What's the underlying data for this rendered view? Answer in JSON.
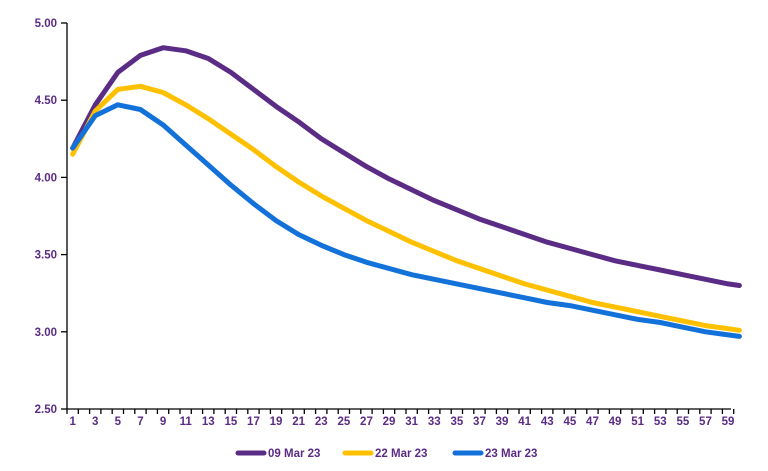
{
  "chart_data": {
    "type": "line",
    "title": "",
    "xlabel": "",
    "ylabel": "",
    "grid": false,
    "legend_position": "bottom",
    "ylim": [
      2.5,
      5.0
    ],
    "yticks": [
      {
        "value": 2.5,
        "label": "2.50"
      },
      {
        "value": 3.0,
        "label": "3.00"
      },
      {
        "value": 3.5,
        "label": "3.50"
      },
      {
        "value": 4.0,
        "label": "4.00"
      },
      {
        "value": 4.5,
        "label": "4.50"
      },
      {
        "value": 5.0,
        "label": "5.00"
      }
    ],
    "xtick_labels": [
      1,
      3,
      5,
      7,
      9,
      11,
      13,
      15,
      17,
      19,
      21,
      23,
      25,
      27,
      29,
      31,
      33,
      35,
      37,
      39,
      41,
      43,
      45,
      47,
      49,
      51,
      53,
      55,
      57,
      59
    ],
    "x_categories_count": 60,
    "x": [
      1,
      3,
      5,
      7,
      9,
      11,
      13,
      15,
      17,
      19,
      21,
      23,
      25,
      27,
      29,
      31,
      33,
      35,
      37,
      39,
      41,
      43,
      45,
      47,
      49,
      51,
      53,
      55,
      57,
      59,
      60
    ],
    "series": [
      {
        "name": "09 Mar 23",
        "color": "#5B2C85",
        "values": [
          4.19,
          4.47,
          4.68,
          4.79,
          4.84,
          4.82,
          4.77,
          4.68,
          4.57,
          4.46,
          4.36,
          4.25,
          4.16,
          4.07,
          3.99,
          3.92,
          3.85,
          3.79,
          3.73,
          3.68,
          3.63,
          3.58,
          3.54,
          3.5,
          3.46,
          3.43,
          3.4,
          3.37,
          3.34,
          3.31,
          3.3
        ]
      },
      {
        "name": "22 Mar 23",
        "color": "#FFC000",
        "values": [
          4.15,
          4.43,
          4.57,
          4.59,
          4.55,
          4.47,
          4.38,
          4.28,
          4.18,
          4.07,
          3.97,
          3.88,
          3.8,
          3.72,
          3.65,
          3.58,
          3.52,
          3.46,
          3.41,
          3.36,
          3.31,
          3.27,
          3.23,
          3.19,
          3.16,
          3.13,
          3.1,
          3.07,
          3.04,
          3.02,
          3.01
        ]
      },
      {
        "name": "23 Mar 23",
        "color": "#1272D9",
        "values": [
          4.19,
          4.4,
          4.47,
          4.44,
          4.34,
          4.21,
          4.08,
          3.95,
          3.83,
          3.72,
          3.63,
          3.56,
          3.5,
          3.45,
          3.41,
          3.37,
          3.34,
          3.31,
          3.28,
          3.25,
          3.22,
          3.19,
          3.17,
          3.14,
          3.11,
          3.08,
          3.06,
          3.03,
          3.0,
          2.98,
          2.97
        ]
      }
    ],
    "colors": {
      "axis": "#000000",
      "tick_label": "#5B2C85",
      "legend_text": "#5B2C85",
      "background": "#FFFFFF"
    }
  }
}
